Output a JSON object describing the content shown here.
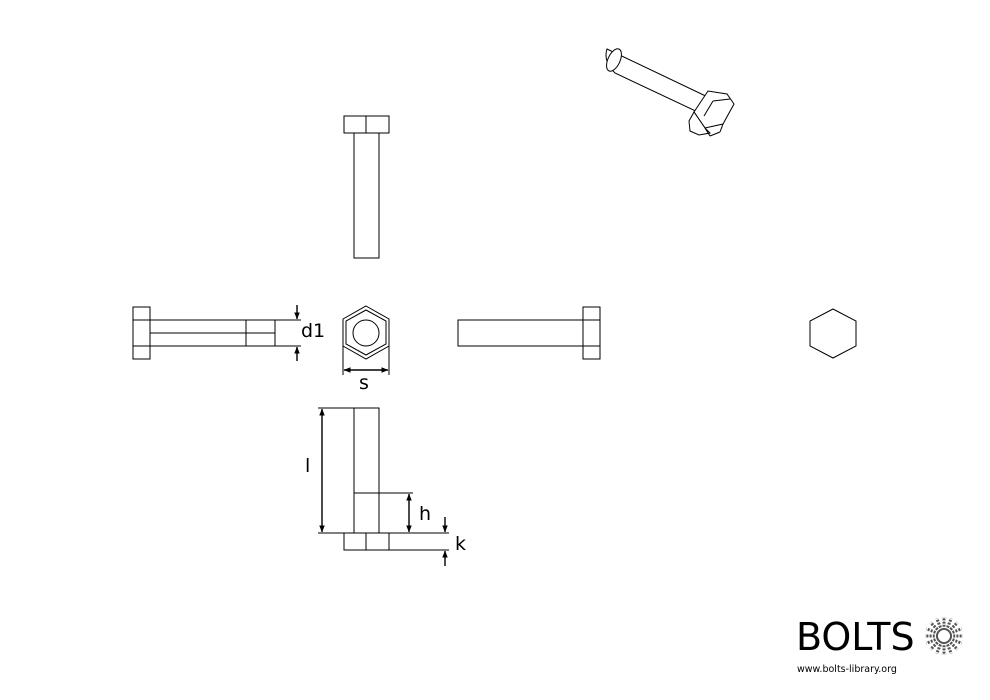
{
  "dimension_labels": {
    "d1": "d1",
    "s": "s",
    "l": "l",
    "h": "h",
    "k": "k"
  },
  "branding": {
    "name": "BOLTS",
    "url": "www.bolts-library.org"
  },
  "colors": {
    "line": "#000000",
    "background": "#ffffff"
  },
  "icons": [
    "bolts-logo-icon"
  ]
}
